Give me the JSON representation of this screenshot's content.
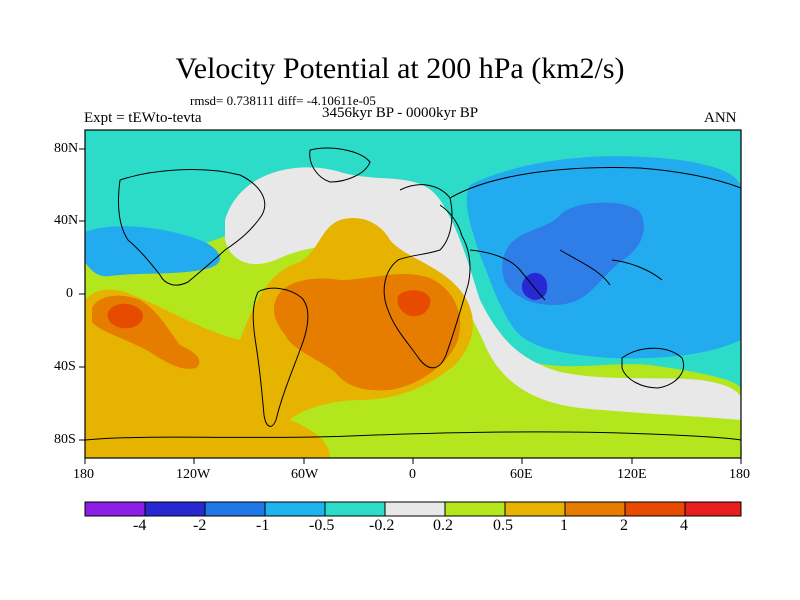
{
  "title": "Velocity Potential at 200 hPa (km2/s)",
  "stats": "rmsd= 0.738111 diff= -4.10611e-05",
  "experiment": "Expt = tEWto-tevta",
  "period": "3456kyr BP - 0000kyr BP",
  "season": "ANN",
  "lat_labels": [
    "80N",
    "40N",
    "0",
    "40S",
    "80S"
  ],
  "lon_labels": [
    "180",
    "120W",
    "60W",
    "0",
    "60E",
    "120E",
    "180"
  ],
  "colorbar": {
    "labels": [
      "-4",
      "-2",
      "-1",
      "-0.5",
      "-0.2",
      "0.2",
      "0.5",
      "1",
      "2",
      "4"
    ],
    "colors": [
      "#8c1ee6",
      "#2828d2",
      "#1e78e6",
      "#1eb4f0",
      "#2ddcc8",
      "#e8e8e8",
      "#b4e61e",
      "#e6b400",
      "#e67d00",
      "#e64b00",
      "#e61e1e"
    ]
  },
  "field_colors": {
    "bin_minus_2_to_minus_1": "#2f7de6",
    "bin_minus_1_to_minus_05": "#22acef",
    "bin_minus_05_to_minus_02": "#2ddcc8",
    "neutral": "#e8e8e8",
    "bin_02_to_05": "#b4e61e",
    "bin_05_to_1": "#e6b400",
    "bin_1_to_2": "#e67d00",
    "bin_2_to_4": "#e64b00",
    "bin_minus_4_to_minus_2": "#2828d2"
  }
}
